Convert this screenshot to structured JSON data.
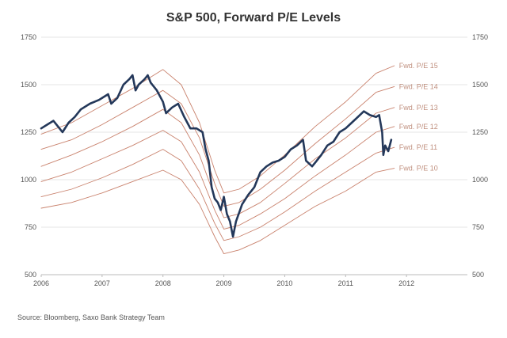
{
  "chart_data": {
    "type": "line",
    "title": "S&P 500, Forward P/E Levels",
    "source": "Source: Bloomberg, Saxo Bank Strategy Team",
    "xlabel": "",
    "ylabel": "",
    "xlim": [
      2006.0,
      2013.0
    ],
    "ylim": [
      500,
      1750
    ],
    "x_ticks": [
      "2006",
      "2007",
      "2008",
      "2009",
      "2010",
      "2011",
      "2012"
    ],
    "y_ticks": [
      "500",
      "750",
      "1000",
      "1250",
      "1500",
      "1750"
    ],
    "grid": "horizontal",
    "series": [
      {
        "name": "S&P 500",
        "color": "#24385a",
        "x": [
          2006.0,
          2006.1,
          2006.2,
          2006.3,
          2006.35,
          2006.45,
          2006.55,
          2006.65,
          2006.8,
          2006.95,
          2007.1,
          2007.15,
          2007.25,
          2007.35,
          2007.45,
          2007.5,
          2007.55,
          2007.6,
          2007.7,
          2007.75,
          2007.8,
          2007.9,
          2008.0,
          2008.05,
          2008.15,
          2008.25,
          2008.35,
          2008.45,
          2008.55,
          2008.65,
          2008.7,
          2008.75,
          2008.8,
          2008.85,
          2008.9,
          2008.95,
          2009.0,
          2009.05,
          2009.1,
          2009.15,
          2009.2,
          2009.3,
          2009.4,
          2009.5,
          2009.6,
          2009.7,
          2009.8,
          2009.9,
          2010.0,
          2010.1,
          2010.2,
          2010.3,
          2010.35,
          2010.45,
          2010.5,
          2010.6,
          2010.7,
          2010.8,
          2010.9,
          2011.0,
          2011.1,
          2011.2,
          2011.3,
          2011.4,
          2011.5,
          2011.55,
          2011.6,
          2011.62,
          2011.65,
          2011.7,
          2011.75
        ],
        "values": [
          1270,
          1290,
          1310,
          1270,
          1250,
          1300,
          1330,
          1370,
          1400,
          1420,
          1450,
          1400,
          1430,
          1500,
          1530,
          1550,
          1470,
          1500,
          1530,
          1550,
          1510,
          1470,
          1410,
          1350,
          1380,
          1400,
          1330,
          1270,
          1270,
          1250,
          1160,
          1100,
          960,
          900,
          880,
          840,
          910,
          820,
          780,
          700,
          780,
          870,
          920,
          960,
          1040,
          1070,
          1090,
          1100,
          1120,
          1160,
          1180,
          1210,
          1100,
          1070,
          1090,
          1130,
          1180,
          1200,
          1250,
          1270,
          1300,
          1330,
          1360,
          1340,
          1330,
          1340,
          1250,
          1130,
          1180,
          1150,
          1210
        ],
        "width": 2.6
      },
      {
        "name": "Fwd. P/E 15",
        "label": "Fwd. P/E 15",
        "color": "#c9826d",
        "x": [
          2006.0,
          2006.5,
          2007.0,
          2007.5,
          2008.0,
          2008.3,
          2008.6,
          2008.85,
          2009.0,
          2009.25,
          2009.6,
          2010.0,
          2010.5,
          2011.0,
          2011.5,
          2011.8
        ],
        "values": [
          1240,
          1300,
          1390,
          1480,
          1580,
          1500,
          1300,
          1050,
          930,
          950,
          1020,
          1130,
          1280,
          1410,
          1560,
          1600
        ],
        "width": 0.9
      },
      {
        "name": "Fwd. P/E 14",
        "label": "Fwd. P/E 14",
        "color": "#c9826d",
        "x": [
          2006.0,
          2006.5,
          2007.0,
          2007.5,
          2008.0,
          2008.3,
          2008.6,
          2008.85,
          2009.0,
          2009.25,
          2009.6,
          2010.0,
          2010.5,
          2011.0,
          2011.5,
          2011.8
        ],
        "values": [
          1160,
          1210,
          1290,
          1380,
          1470,
          1400,
          1220,
          980,
          860,
          880,
          950,
          1050,
          1190,
          1320,
          1460,
          1490
        ],
        "width": 0.9
      },
      {
        "name": "Fwd. P/E 13",
        "label": "Fwd. P/E 13",
        "color": "#c9826d",
        "x": [
          2006.0,
          2006.5,
          2007.0,
          2007.5,
          2008.0,
          2008.3,
          2008.6,
          2008.85,
          2009.0,
          2009.25,
          2009.6,
          2010.0,
          2010.5,
          2011.0,
          2011.5,
          2011.8
        ],
        "values": [
          1070,
          1130,
          1200,
          1280,
          1370,
          1300,
          1130,
          910,
          800,
          820,
          880,
          980,
          1110,
          1220,
          1350,
          1380
        ],
        "width": 0.9
      },
      {
        "name": "Fwd. P/E 12",
        "label": "Fwd. P/E 12",
        "color": "#c9826d",
        "x": [
          2006.0,
          2006.5,
          2007.0,
          2007.5,
          2008.0,
          2008.3,
          2008.6,
          2008.85,
          2009.0,
          2009.25,
          2009.6,
          2010.0,
          2010.5,
          2011.0,
          2011.5,
          2011.8
        ],
        "values": [
          990,
          1040,
          1110,
          1180,
          1260,
          1200,
          1040,
          840,
          740,
          760,
          820,
          900,
          1020,
          1130,
          1250,
          1280
        ],
        "width": 0.9
      },
      {
        "name": "Fwd. P/E 11",
        "label": "Fwd. P/E 11",
        "color": "#c9826d",
        "x": [
          2006.0,
          2006.5,
          2007.0,
          2007.5,
          2008.0,
          2008.3,
          2008.6,
          2008.85,
          2009.0,
          2009.25,
          2009.6,
          2010.0,
          2010.5,
          2011.0,
          2011.5,
          2011.8
        ],
        "values": [
          910,
          950,
          1010,
          1080,
          1160,
          1100,
          950,
          770,
          680,
          700,
          750,
          830,
          940,
          1040,
          1140,
          1170
        ],
        "width": 0.9
      },
      {
        "name": "Fwd. P/E 10",
        "label": "Fwd. P/E 10",
        "color": "#c9826d",
        "x": [
          2006.0,
          2006.5,
          2007.0,
          2007.5,
          2008.0,
          2008.3,
          2008.6,
          2008.85,
          2009.0,
          2009.25,
          2009.6,
          2010.0,
          2010.5,
          2011.0,
          2011.5,
          2011.8
        ],
        "values": [
          850,
          880,
          930,
          990,
          1050,
          1000,
          870,
          700,
          610,
          630,
          680,
          760,
          860,
          940,
          1040,
          1060
        ],
        "width": 0.9
      }
    ]
  }
}
